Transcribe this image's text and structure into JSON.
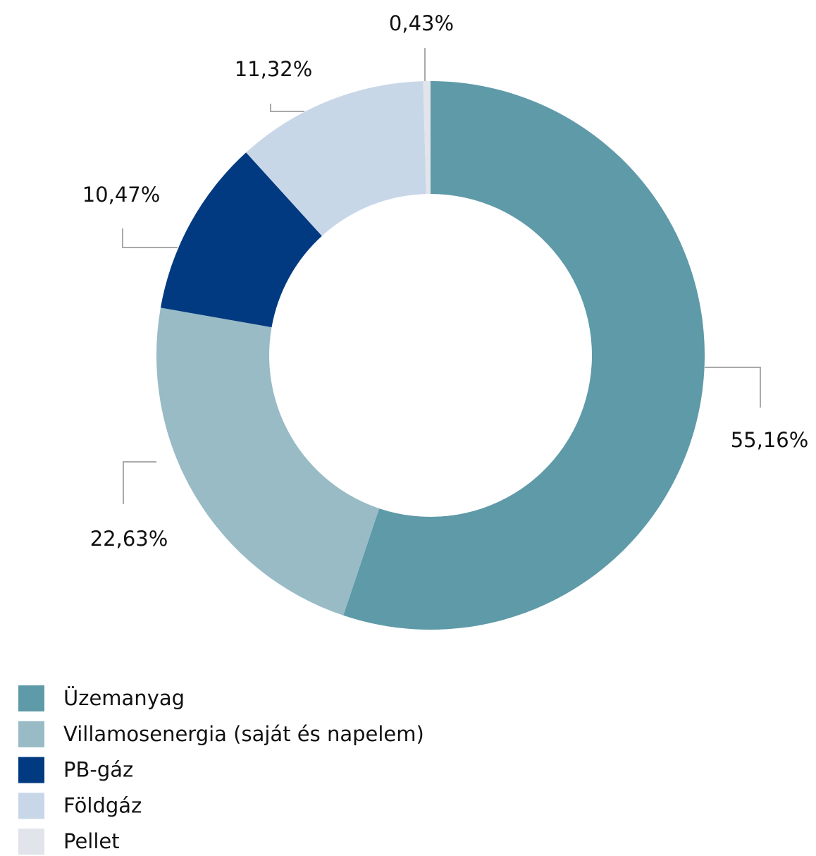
{
  "chart_data": {
    "type": "pie",
    "categories": [
      "Üzemanyag",
      "Villamosenergia (saját és napelem)",
      "PB-gáz",
      "Földgáz",
      "Pellet"
    ],
    "values": [
      55.16,
      22.63,
      10.47,
      11.32,
      0.43
    ],
    "value_labels": [
      "55,16%",
      "22,63%",
      "10,47%",
      "11,32%",
      "0,43%"
    ],
    "colors": [
      "#5e9aa8",
      "#98bbc5",
      "#013a80",
      "#c8d7e8",
      "#e1e4ea"
    ],
    "legend": "bottom-left"
  }
}
